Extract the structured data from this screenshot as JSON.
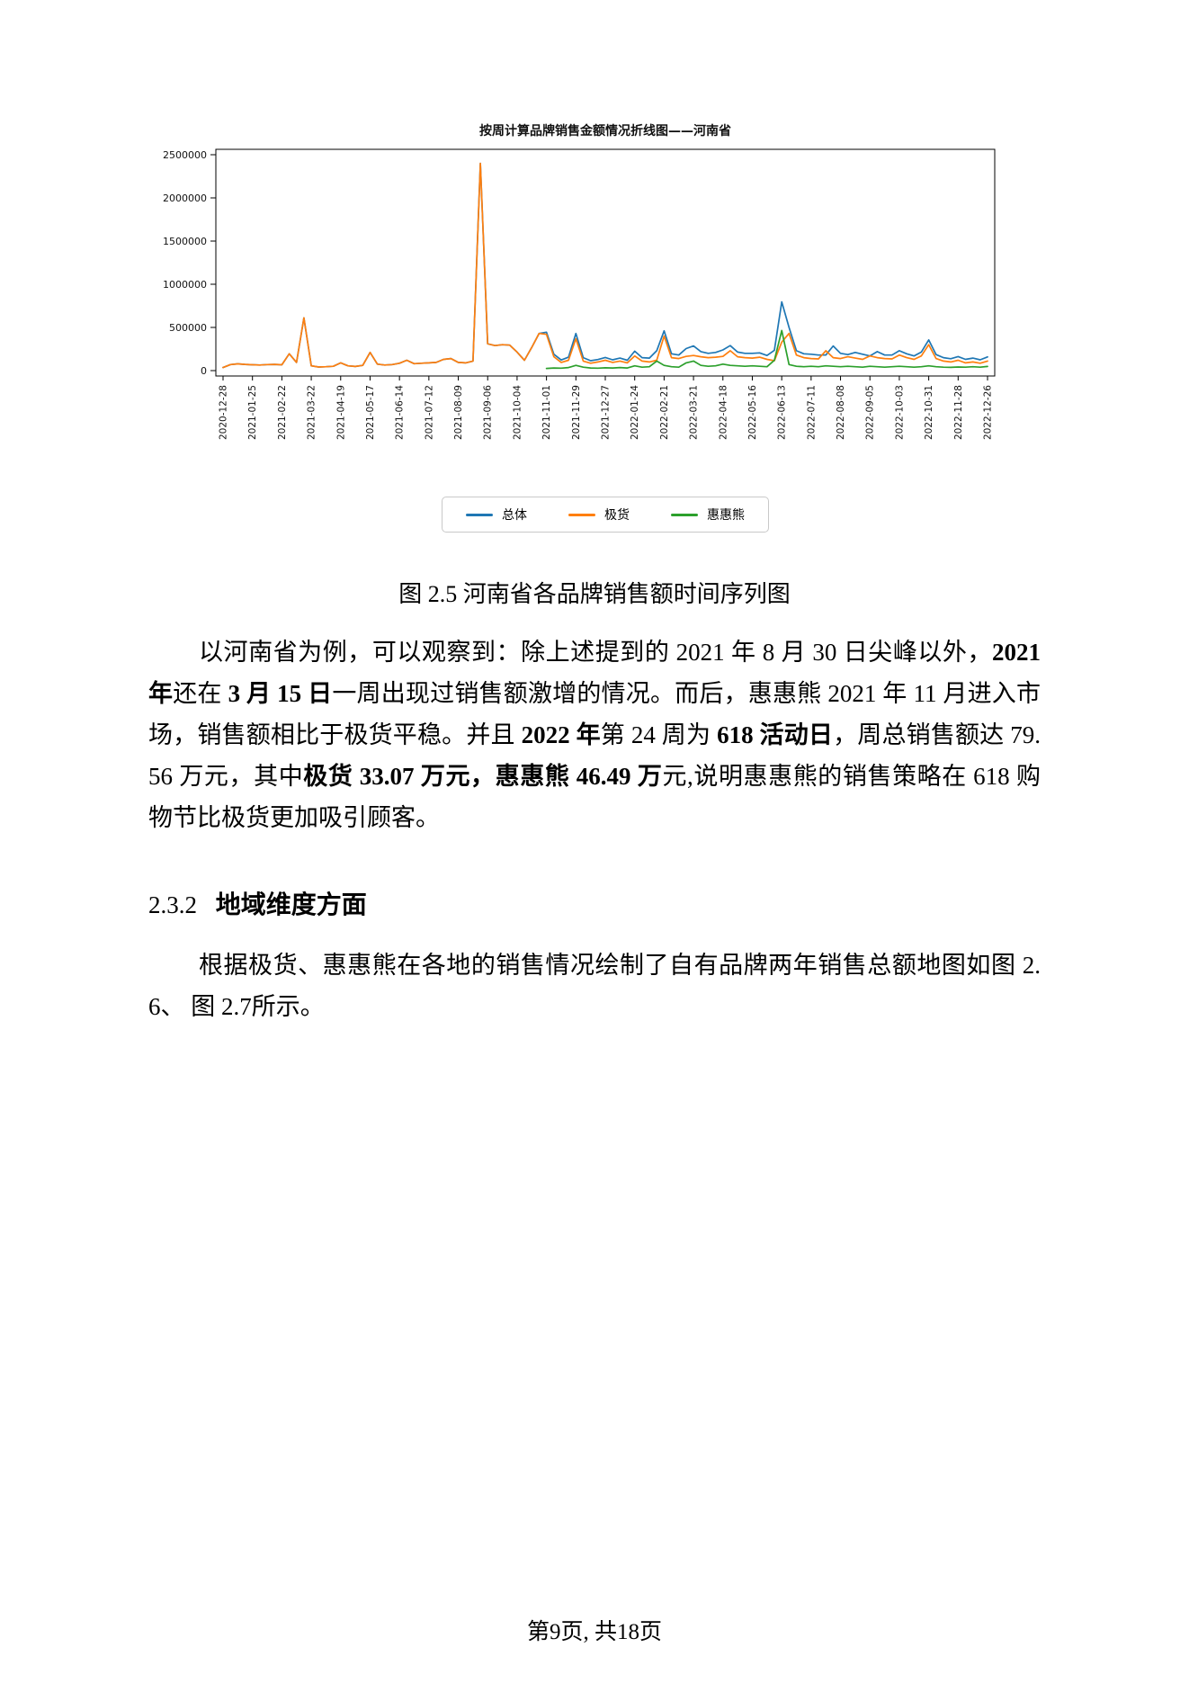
{
  "figure": {
    "caption": "图 2.5 河南省各品牌销售额时间序列图"
  },
  "chart_data": {
    "type": "line",
    "title": "按周计算品牌销售金额情况折线图——河南省",
    "xlabel": "",
    "ylabel": "",
    "ylim": [
      0,
      2500000
    ],
    "y_ticks": [
      0,
      500000,
      1000000,
      1500000,
      2000000,
      2500000
    ],
    "x_unit": "week (one point per week, ticks every 4 weeks)",
    "x_tick_labels": [
      "2020-12-28",
      "2021-01-25",
      "2021-02-22",
      "2021-03-22",
      "2021-04-19",
      "2021-05-17",
      "2021-06-14",
      "2021-07-12",
      "2021-08-09",
      "2021-09-06",
      "2021-10-04",
      "2021-11-01",
      "2021-11-29",
      "2021-12-27",
      "2022-01-24",
      "2022-02-21",
      "2022-03-21",
      "2022-04-18",
      "2022-05-16",
      "2022-06-13",
      "2022-07-11",
      "2022-08-08",
      "2022-09-05",
      "2022-10-03",
      "2022-10-31",
      "2022-11-28",
      "2022-12-26"
    ],
    "grid": false,
    "legend_position": "bottom-center",
    "series": [
      {
        "name": "总体",
        "color": "#1f77b4",
        "values": [
          35000,
          70000,
          78000,
          72000,
          68000,
          65000,
          70000,
          72000,
          68000,
          195000,
          95000,
          610000,
          55000,
          42000,
          45000,
          50000,
          90000,
          55000,
          48000,
          60000,
          210000,
          75000,
          65000,
          70000,
          85000,
          120000,
          80000,
          85000,
          90000,
          95000,
          130000,
          140000,
          95000,
          90000,
          110000,
          2400000,
          310000,
          290000,
          300000,
          295000,
          215000,
          120000,
          270000,
          430000,
          445000,
          190000,
          123000,
          155000,
          430000,
          150000,
          115000,
          128000,
          152000,
          125000,
          145000,
          120000,
          225000,
          150000,
          145000,
          230000,
          460000,
          195000,
          180000,
          255000,
          285000,
          220000,
          200000,
          210000,
          240000,
          290000,
          215000,
          200000,
          200000,
          205000,
          175000,
          235000,
          795600,
          500000,
          230000,
          195000,
          190000,
          180000,
          180000,
          285000,
          200000,
          185000,
          210000,
          190000,
          170000,
          220000,
          180000,
          180000,
          230000,
          195000,
          170000,
          215000,
          355000,
          185000,
          150000,
          138000,
          162000,
          130000,
          145000,
          125000,
          158000
        ]
      },
      {
        "name": "极货",
        "color": "#ff7f0e",
        "values": [
          35000,
          70000,
          78000,
          72000,
          68000,
          65000,
          70000,
          72000,
          68000,
          195000,
          95000,
          610000,
          55000,
          42000,
          45000,
          50000,
          90000,
          55000,
          48000,
          60000,
          210000,
          75000,
          65000,
          70000,
          85000,
          120000,
          80000,
          85000,
          90000,
          95000,
          130000,
          140000,
          95000,
          90000,
          110000,
          2400000,
          310000,
          290000,
          300000,
          295000,
          215000,
          120000,
          270000,
          430000,
          420000,
          160000,
          95000,
          120000,
          370000,
          110000,
          85000,
          100000,
          120000,
          95000,
          110000,
          90000,
          170000,
          110000,
          100000,
          120000,
          400000,
          150000,
          140000,
          165000,
          175000,
          160000,
          150000,
          155000,
          165000,
          230000,
          160000,
          150000,
          145000,
          155000,
          130000,
          115000,
          330700,
          430000,
          180000,
          150000,
          140000,
          135000,
          230000,
          150000,
          140000,
          160000,
          145000,
          130000,
          170000,
          150000,
          140000,
          135000,
          180000,
          150000,
          130000,
          170000,
          300000,
          140000,
          110000,
          100000,
          120000,
          90000,
          100000,
          85000,
          110000
        ]
      },
      {
        "name": "惠惠熊",
        "color": "#2ca02c",
        "values": [
          null,
          null,
          null,
          null,
          null,
          null,
          null,
          null,
          null,
          null,
          null,
          null,
          null,
          null,
          null,
          null,
          null,
          null,
          null,
          null,
          null,
          null,
          null,
          null,
          null,
          null,
          null,
          null,
          null,
          null,
          null,
          null,
          null,
          null,
          null,
          null,
          null,
          null,
          null,
          null,
          null,
          null,
          null,
          null,
          25000,
          30000,
          28000,
          35000,
          60000,
          40000,
          30000,
          28000,
          32000,
          30000,
          35000,
          30000,
          55000,
          40000,
          45000,
          110000,
          60000,
          45000,
          40000,
          90000,
          110000,
          60000,
          50000,
          55000,
          75000,
          60000,
          55000,
          50000,
          55000,
          50000,
          45000,
          120000,
          464900,
          70000,
          50000,
          45000,
          50000,
          45000,
          55000,
          50000,
          45000,
          50000,
          45000,
          40000,
          50000,
          45000,
          40000,
          45000,
          50000,
          45000,
          40000,
          45000,
          55000,
          45000,
          40000,
          38000,
          42000,
          40000,
          45000,
          40000,
          48000
        ]
      }
    ],
    "annotations": [
      "2021-03-15 week: 极货 surge ≈ 610000",
      "2021-08-30 week: 极货 peak ≈ 2400000",
      "2022-06-13 week (618): 总体 795600 = 极货 330700 + 惠惠熊 464900"
    ]
  },
  "body": {
    "paragraph1_runs": [
      {
        "t": "以河南省为例，可以观察到：除上述提到的 2021 年 8 月 30 日尖峰以外，",
        "b": false
      },
      {
        "t": "2021 年",
        "b": true
      },
      {
        "t": "还在 ",
        "b": false
      },
      {
        "t": "3 月 15 日",
        "b": true
      },
      {
        "t": "一周出现过销售额激增的情况。而后，惠惠熊 2021 年 11 月进入市场，销售额相比于极货平稳。并且 ",
        "b": false
      },
      {
        "t": "2022 年",
        "b": true
      },
      {
        "t": "第 24 周为 ",
        "b": false
      },
      {
        "t": "618 活动日",
        "b": true
      },
      {
        "t": "，周总销售额达 79.56 万元，其中",
        "b": false
      },
      {
        "t": "极货 33.07 万元，惠惠熊 46.49 万",
        "b": true
      },
      {
        "t": "元,说明惠惠熊的销售策略在 618 购物节比极货更加吸引顾客。",
        "b": false
      }
    ],
    "section": {
      "number": "2.3.2",
      "title": "地域维度方面"
    },
    "paragraph2_runs": [
      {
        "t": "根据极货、惠惠熊在各地的销售情况绘制了自有品牌两年销售总额地图如图 2.6、 图 2.7所示。",
        "b": false
      }
    ]
  },
  "page": {
    "footer": "第9页, 共18页"
  }
}
